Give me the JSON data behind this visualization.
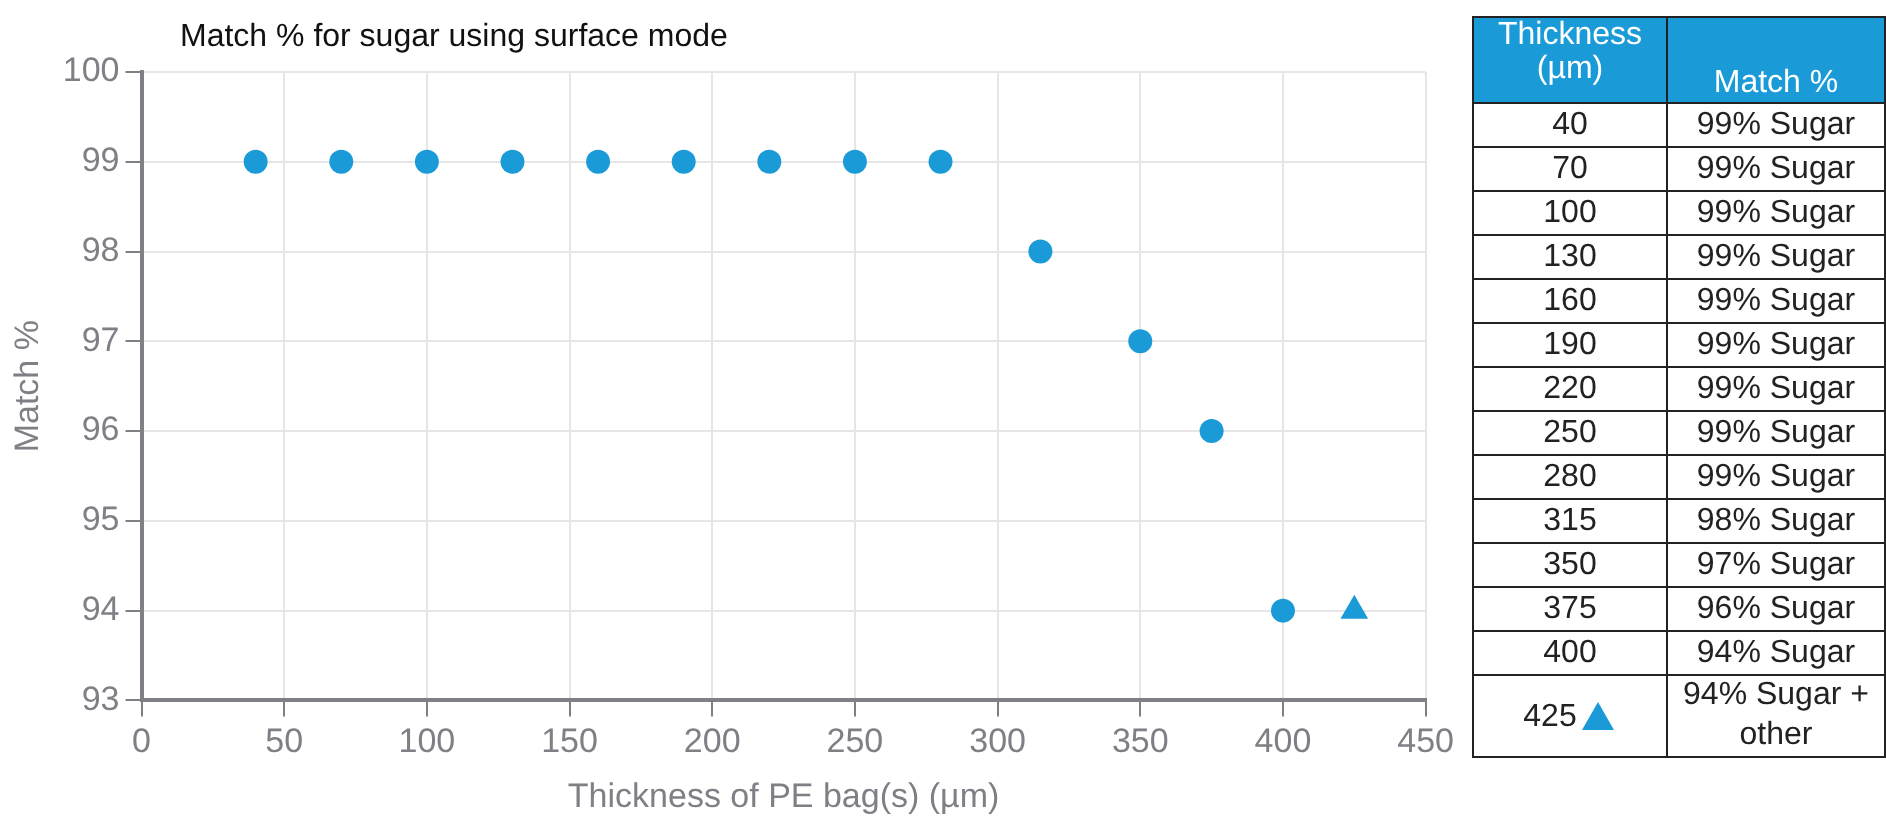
{
  "chart_data": [
    {
      "type": "scatter",
      "title": "Match % for sugar using surface mode",
      "xlabel": "Thickness of PE bag(s) (µm)",
      "ylabel": "Match %",
      "xlim": [
        0,
        450
      ],
      "xticks": [
        0,
        50,
        100,
        150,
        200,
        250,
        300,
        350,
        400,
        450
      ],
      "ylim": [
        93,
        100
      ],
      "yticks": [
        93,
        94,
        95,
        96,
        97,
        98,
        99,
        100
      ],
      "grid": true,
      "series": [
        {
          "color": "#1a9bd7",
          "marker": "circle",
          "x": [
            40,
            70,
            100,
            130,
            160,
            190,
            220,
            250,
            280,
            315,
            350,
            375,
            400
          ],
          "values": [
            99,
            99,
            99,
            99,
            99,
            99,
            99,
            99,
            99,
            98,
            97,
            96,
            94
          ]
        },
        {
          "color": "#1a9bd7",
          "marker": "triangle",
          "x": [
            425
          ],
          "values": [
            94
          ]
        }
      ]
    },
    {
      "type": "other",
      "annotations": [
        "Thickness (µm)",
        "Match %",
        "40",
        "99% Sugar",
        "70",
        "99% Sugar",
        "100",
        "99% Sugar",
        "130",
        "99% Sugar",
        "160",
        "99% Sugar",
        "190",
        "99% Sugar",
        "220",
        "99% Sugar",
        "250",
        "99% Sugar",
        "280",
        "99% Sugar",
        "315",
        "98% Sugar",
        "350",
        "97% Sugar",
        "375",
        "96% Sugar",
        "400",
        "94% Sugar",
        "425",
        "94% Sugar + other"
      ]
    }
  ]
}
